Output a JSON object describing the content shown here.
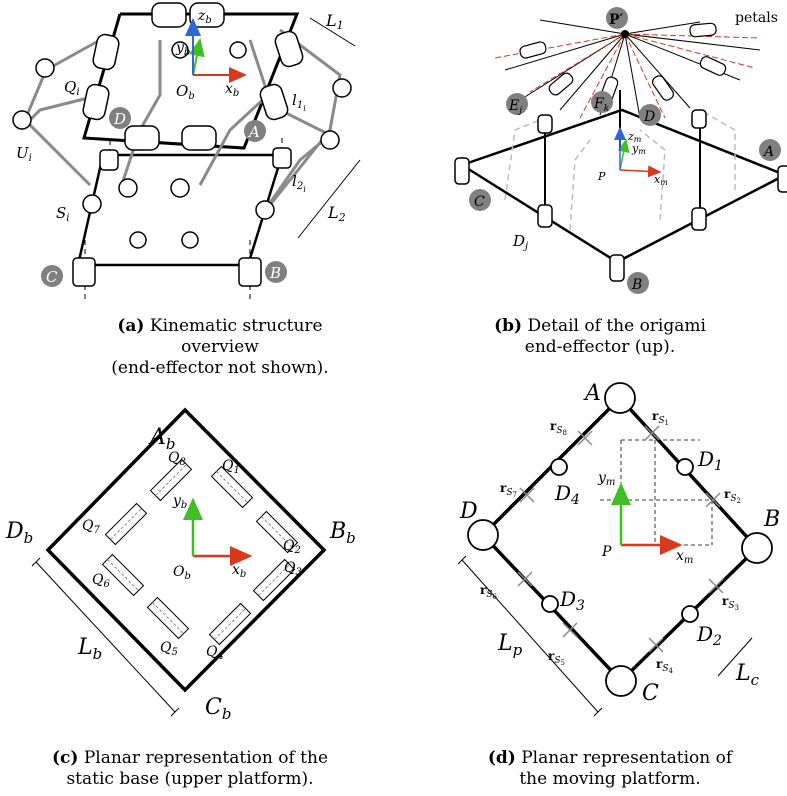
{
  "panels": {
    "a": {
      "caption_tag": "(a)",
      "caption_line1": "Kinematic structure overview",
      "caption_line2": "(end-effector not shown).",
      "labels": {
        "z": "z",
        "zs": "b",
        "y": "y",
        "ys": "b",
        "x": "x",
        "xs": "b",
        "O": "O",
        "Os": "b",
        "Q": "Q",
        "Qs": "i",
        "U": "U",
        "Us": "i",
        "S": "S",
        "Ss": "i",
        "l1": "l",
        "l1s": "1",
        "l1ss": "i",
        "l2": "l",
        "l2s": "2",
        "l2ss": "i",
        "L1": "L",
        "L1s": "1",
        "L2": "L",
        "L2s": "2",
        "A": "A",
        "B": "B",
        "C": "C",
        "D": "D"
      }
    },
    "b": {
      "caption_tag": "(b)",
      "caption_line1": "Detail of the origami",
      "caption_line2": "end-effector (up).",
      "labels": {
        "Pp": "P′",
        "petals": "petals",
        "E": "E",
        "Es": "j",
        "F": "F",
        "Fs": "k",
        "D": "D",
        "Dj": "D",
        "Djs": "j",
        "A": "A",
        "B": "B",
        "C": "C",
        "z": "z",
        "zs": "m",
        "y": "y",
        "ys": "m",
        "x": "x",
        "xs": "m",
        "P": "P"
      }
    },
    "c": {
      "caption_tag": "(c)",
      "caption_line1": "Planar representation of the",
      "caption_line2": "static base (upper platform).",
      "labels": {
        "A": "A",
        "As": "b",
        "B": "B",
        "Bs": "b",
        "C": "C",
        "Cs": "b",
        "D": "D",
        "Ds": "b",
        "L": "L",
        "Ls": "b",
        "y": "y",
        "ys": "b",
        "x": "x",
        "xs": "b",
        "O": "O",
        "Os": "b"
      },
      "joints": [
        "1",
        "2",
        "3",
        "4",
        "5",
        "6",
        "7",
        "8"
      ],
      "joint_prefix": "Q"
    },
    "d": {
      "caption_tag": "(d)",
      "caption_line1": "Planar representation of",
      "caption_line2": "the moving platform.",
      "labels": {
        "A": "A",
        "B": "B",
        "C": "C",
        "D": "D",
        "D1": "D",
        "D1s": "1",
        "D2": "D",
        "D2s": "2",
        "D3": "D",
        "D3s": "3",
        "D4": "D",
        "D4s": "4",
        "Lp": "L",
        "Lps": "p",
        "Lc": "L",
        "Lcs": "c",
        "y": "y",
        "ys": "m",
        "x": "x",
        "xs": "m",
        "P": "P",
        "r": "r",
        "rs": "S"
      },
      "spheres": [
        "1",
        "2",
        "3",
        "4",
        "5",
        "6",
        "7",
        "8"
      ]
    }
  },
  "colors": {
    "line": "#000000",
    "gray": "#8a8a8a",
    "light": "#bdbdbd",
    "x_axis": "#d9381e",
    "y_axis": "#3fbf24",
    "z_axis": "#2f66d6",
    "badge": "#808080"
  }
}
